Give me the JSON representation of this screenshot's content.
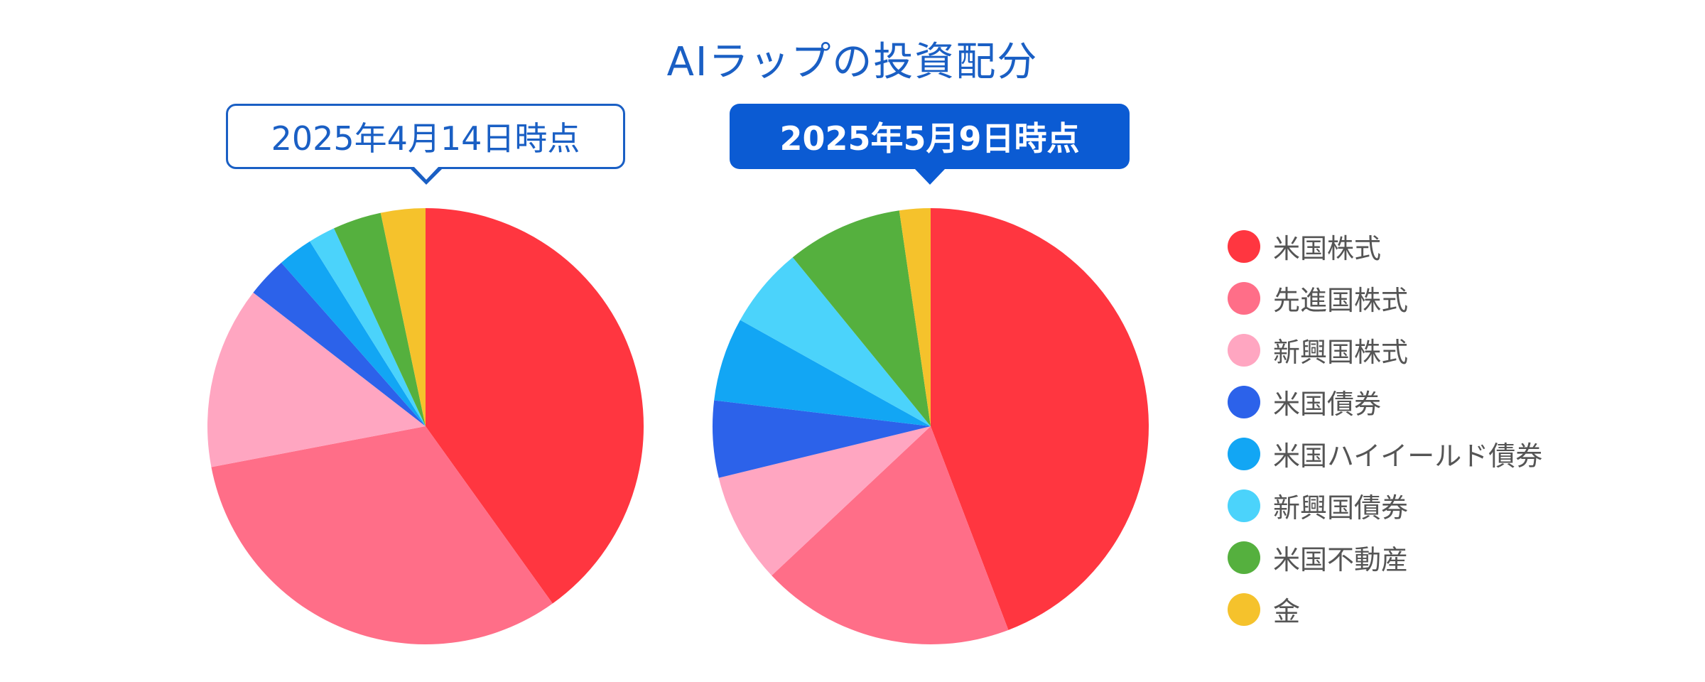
{
  "chart_data": {
    "type": "pie",
    "title": "AIラップの投資配分",
    "categories": [
      "米国株式",
      "先進国株式",
      "新興国株式",
      "米国債券",
      "米国ハイイールド債券",
      "新興国債券",
      "米国不動産",
      "金"
    ],
    "colors": [
      "#ff3640",
      "#ff6e88",
      "#ffa6c1",
      "#2c62ea",
      "#12a6f4",
      "#4bd3fb",
      "#55b03e",
      "#f5c22c"
    ],
    "series": [
      {
        "name": "2025年4月14日時点",
        "values": [
          40.1,
          31.9,
          13.5,
          3.0,
          2.6,
          2.0,
          3.6,
          3.3
        ]
      },
      {
        "name": "2025年5月9日時点",
        "values": [
          44.2,
          18.8,
          8.2,
          5.7,
          6.2,
          6.0,
          8.6,
          2.3
        ]
      }
    ],
    "legend_position": "right"
  }
}
